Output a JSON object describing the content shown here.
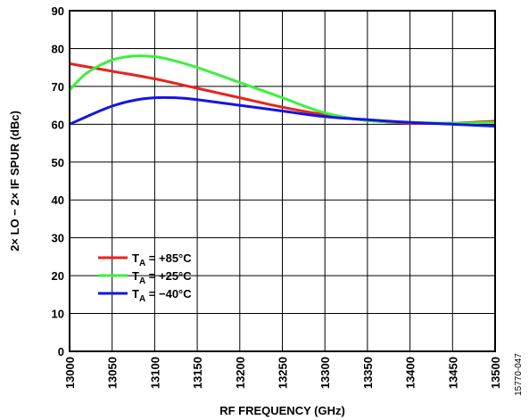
{
  "chart_data": {
    "type": "line",
    "xlabel": "RF FREQUENCY (GHz)",
    "ylabel": "2× LO − 2× IF SPUR (dBc)",
    "xlim": [
      13000,
      13500
    ],
    "ylim": [
      0,
      90
    ],
    "xticks": [
      13000,
      13050,
      13100,
      13150,
      13200,
      13250,
      13300,
      13350,
      13400,
      13450,
      13500
    ],
    "yticks": [
      0,
      10,
      20,
      30,
      40,
      50,
      60,
      70,
      80,
      90
    ],
    "grid": true,
    "legend_position": "lower-left",
    "series": [
      {
        "name": "+85°C",
        "color": "#e8231e",
        "x": [
          13000,
          13050,
          13100,
          13150,
          13200,
          13250,
          13300,
          13350,
          13400,
          13450,
          13500
        ],
        "y": [
          76,
          74,
          72,
          69.5,
          67,
          64.5,
          62.5,
          61,
          60.3,
          60.3,
          60.8
        ]
      },
      {
        "name": "+25°C",
        "color": "#3cf03c",
        "x": [
          13000,
          13020,
          13050,
          13075,
          13090,
          13110,
          13150,
          13200,
          13250,
          13300,
          13350,
          13400,
          13450,
          13500
        ],
        "y": [
          69,
          73.5,
          77,
          78,
          78,
          77.5,
          75,
          71,
          67,
          63,
          61,
          60.5,
          60.3,
          60.5
        ]
      },
      {
        "name": "−40°C",
        "color": "#1414e6",
        "x": [
          13000,
          13025,
          13050,
          13075,
          13100,
          13125,
          13150,
          13200,
          13250,
          13300,
          13350,
          13400,
          13450,
          13500
        ],
        "y": [
          60,
          62.5,
          64.8,
          66.3,
          67,
          67,
          66.5,
          65,
          63.5,
          62,
          61.2,
          60.5,
          60,
          59.5
        ]
      }
    ],
    "legend_prefix_main": "T",
    "legend_prefix_sub": "A",
    "figure_id": "15770-047"
  }
}
